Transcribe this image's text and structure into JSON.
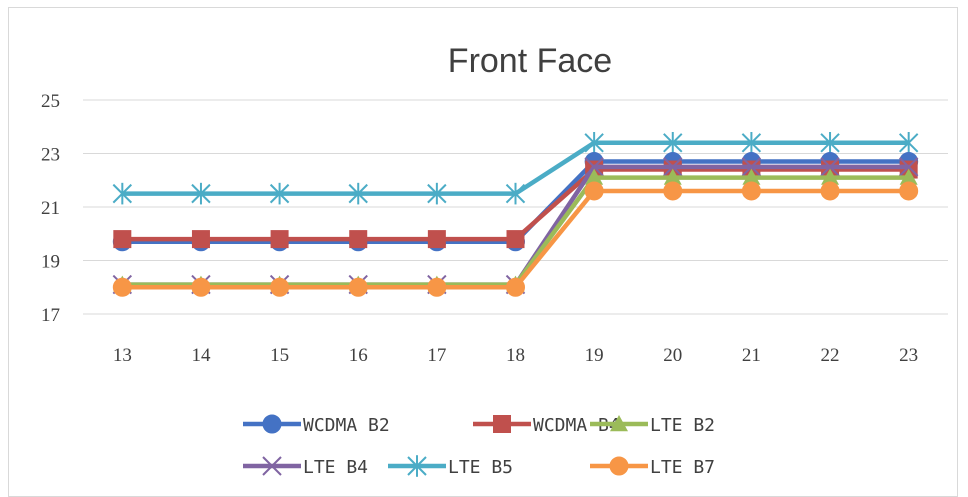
{
  "chart_data": {
    "type": "line",
    "title": "Front Face",
    "xlabel": "",
    "ylabel": "",
    "x": [
      13,
      14,
      15,
      16,
      17,
      18,
      19,
      20,
      21,
      22,
      23
    ],
    "y_ticks": [
      "17",
      "19",
      "21",
      "23",
      "25"
    ],
    "ylim": [
      17,
      25
    ],
    "grid": "horizontal",
    "legend_position": "bottom",
    "series": [
      {
        "name": "WCDMA B2",
        "values": [
          19.7,
          19.7,
          19.7,
          19.7,
          19.7,
          19.7,
          22.7,
          22.7,
          22.7,
          22.7,
          22.7
        ],
        "color": "#4472c4",
        "marker": "circle"
      },
      {
        "name": "WCDMA B4",
        "values": [
          19.8,
          19.8,
          19.8,
          19.8,
          19.8,
          19.8,
          22.4,
          22.4,
          22.4,
          22.4,
          22.4
        ],
        "color": "#c0504d",
        "marker": "square"
      },
      {
        "name": "LTE B2",
        "values": [
          18.1,
          18.1,
          18.1,
          18.1,
          18.1,
          18.1,
          22.1,
          22.1,
          22.1,
          22.1,
          22.1
        ],
        "color": "#9bbb59",
        "marker": "triangle"
      },
      {
        "name": "LTE B4",
        "values": [
          18.1,
          18.1,
          18.1,
          18.1,
          18.1,
          18.1,
          22.5,
          22.5,
          22.5,
          22.5,
          22.5
        ],
        "color": "#8064a2",
        "marker": "x"
      },
      {
        "name": "LTE B5",
        "values": [
          21.5,
          21.5,
          21.5,
          21.5,
          21.5,
          21.5,
          23.4,
          23.4,
          23.4,
          23.4,
          23.4
        ],
        "color": "#4bacc6",
        "marker": "star"
      },
      {
        "name": "LTE B7",
        "values": [
          18.0,
          18.0,
          18.0,
          18.0,
          18.0,
          18.0,
          21.6,
          21.6,
          21.6,
          21.6,
          21.6
        ],
        "color": "#f79646",
        "marker": "circle"
      }
    ]
  },
  "colors": {
    "gridline": "#d9d9d9",
    "text": "#404040"
  }
}
